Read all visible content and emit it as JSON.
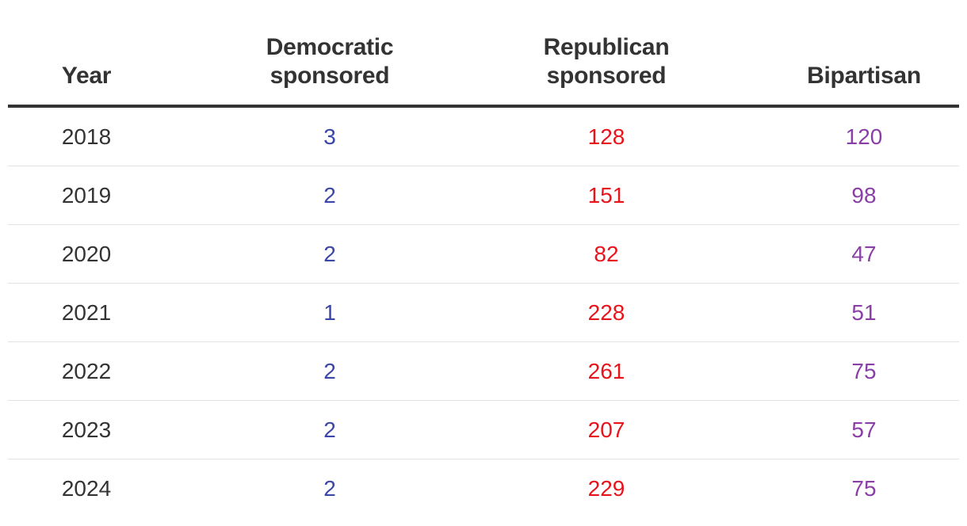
{
  "chart_data": {
    "type": "table",
    "columns": [
      "Year",
      "Democratic\nsponsored",
      "Republican\nsponsored",
      "Bipartisan"
    ],
    "rows": [
      {
        "year": "2018",
        "democratic": "3",
        "republican": "128",
        "bipartisan": "120"
      },
      {
        "year": "2019",
        "democratic": "2",
        "republican": "151",
        "bipartisan": "98"
      },
      {
        "year": "2020",
        "democratic": "2",
        "republican": "82",
        "bipartisan": "47"
      },
      {
        "year": "2021",
        "democratic": "1",
        "republican": "228",
        "bipartisan": "51"
      },
      {
        "year": "2022",
        "democratic": "2",
        "republican": "261",
        "bipartisan": "75"
      },
      {
        "year": "2023",
        "democratic": "2",
        "republican": "207",
        "bipartisan": "57"
      },
      {
        "year": "2024",
        "democratic": "2",
        "republican": "229",
        "bipartisan": "75"
      }
    ]
  },
  "colors": {
    "democratic": "#3a46a8",
    "republican": "#e8141c",
    "bipartisan": "#8a3fa6",
    "text": "#333333",
    "rule": "#333333",
    "divider": "#e3e3e3"
  }
}
